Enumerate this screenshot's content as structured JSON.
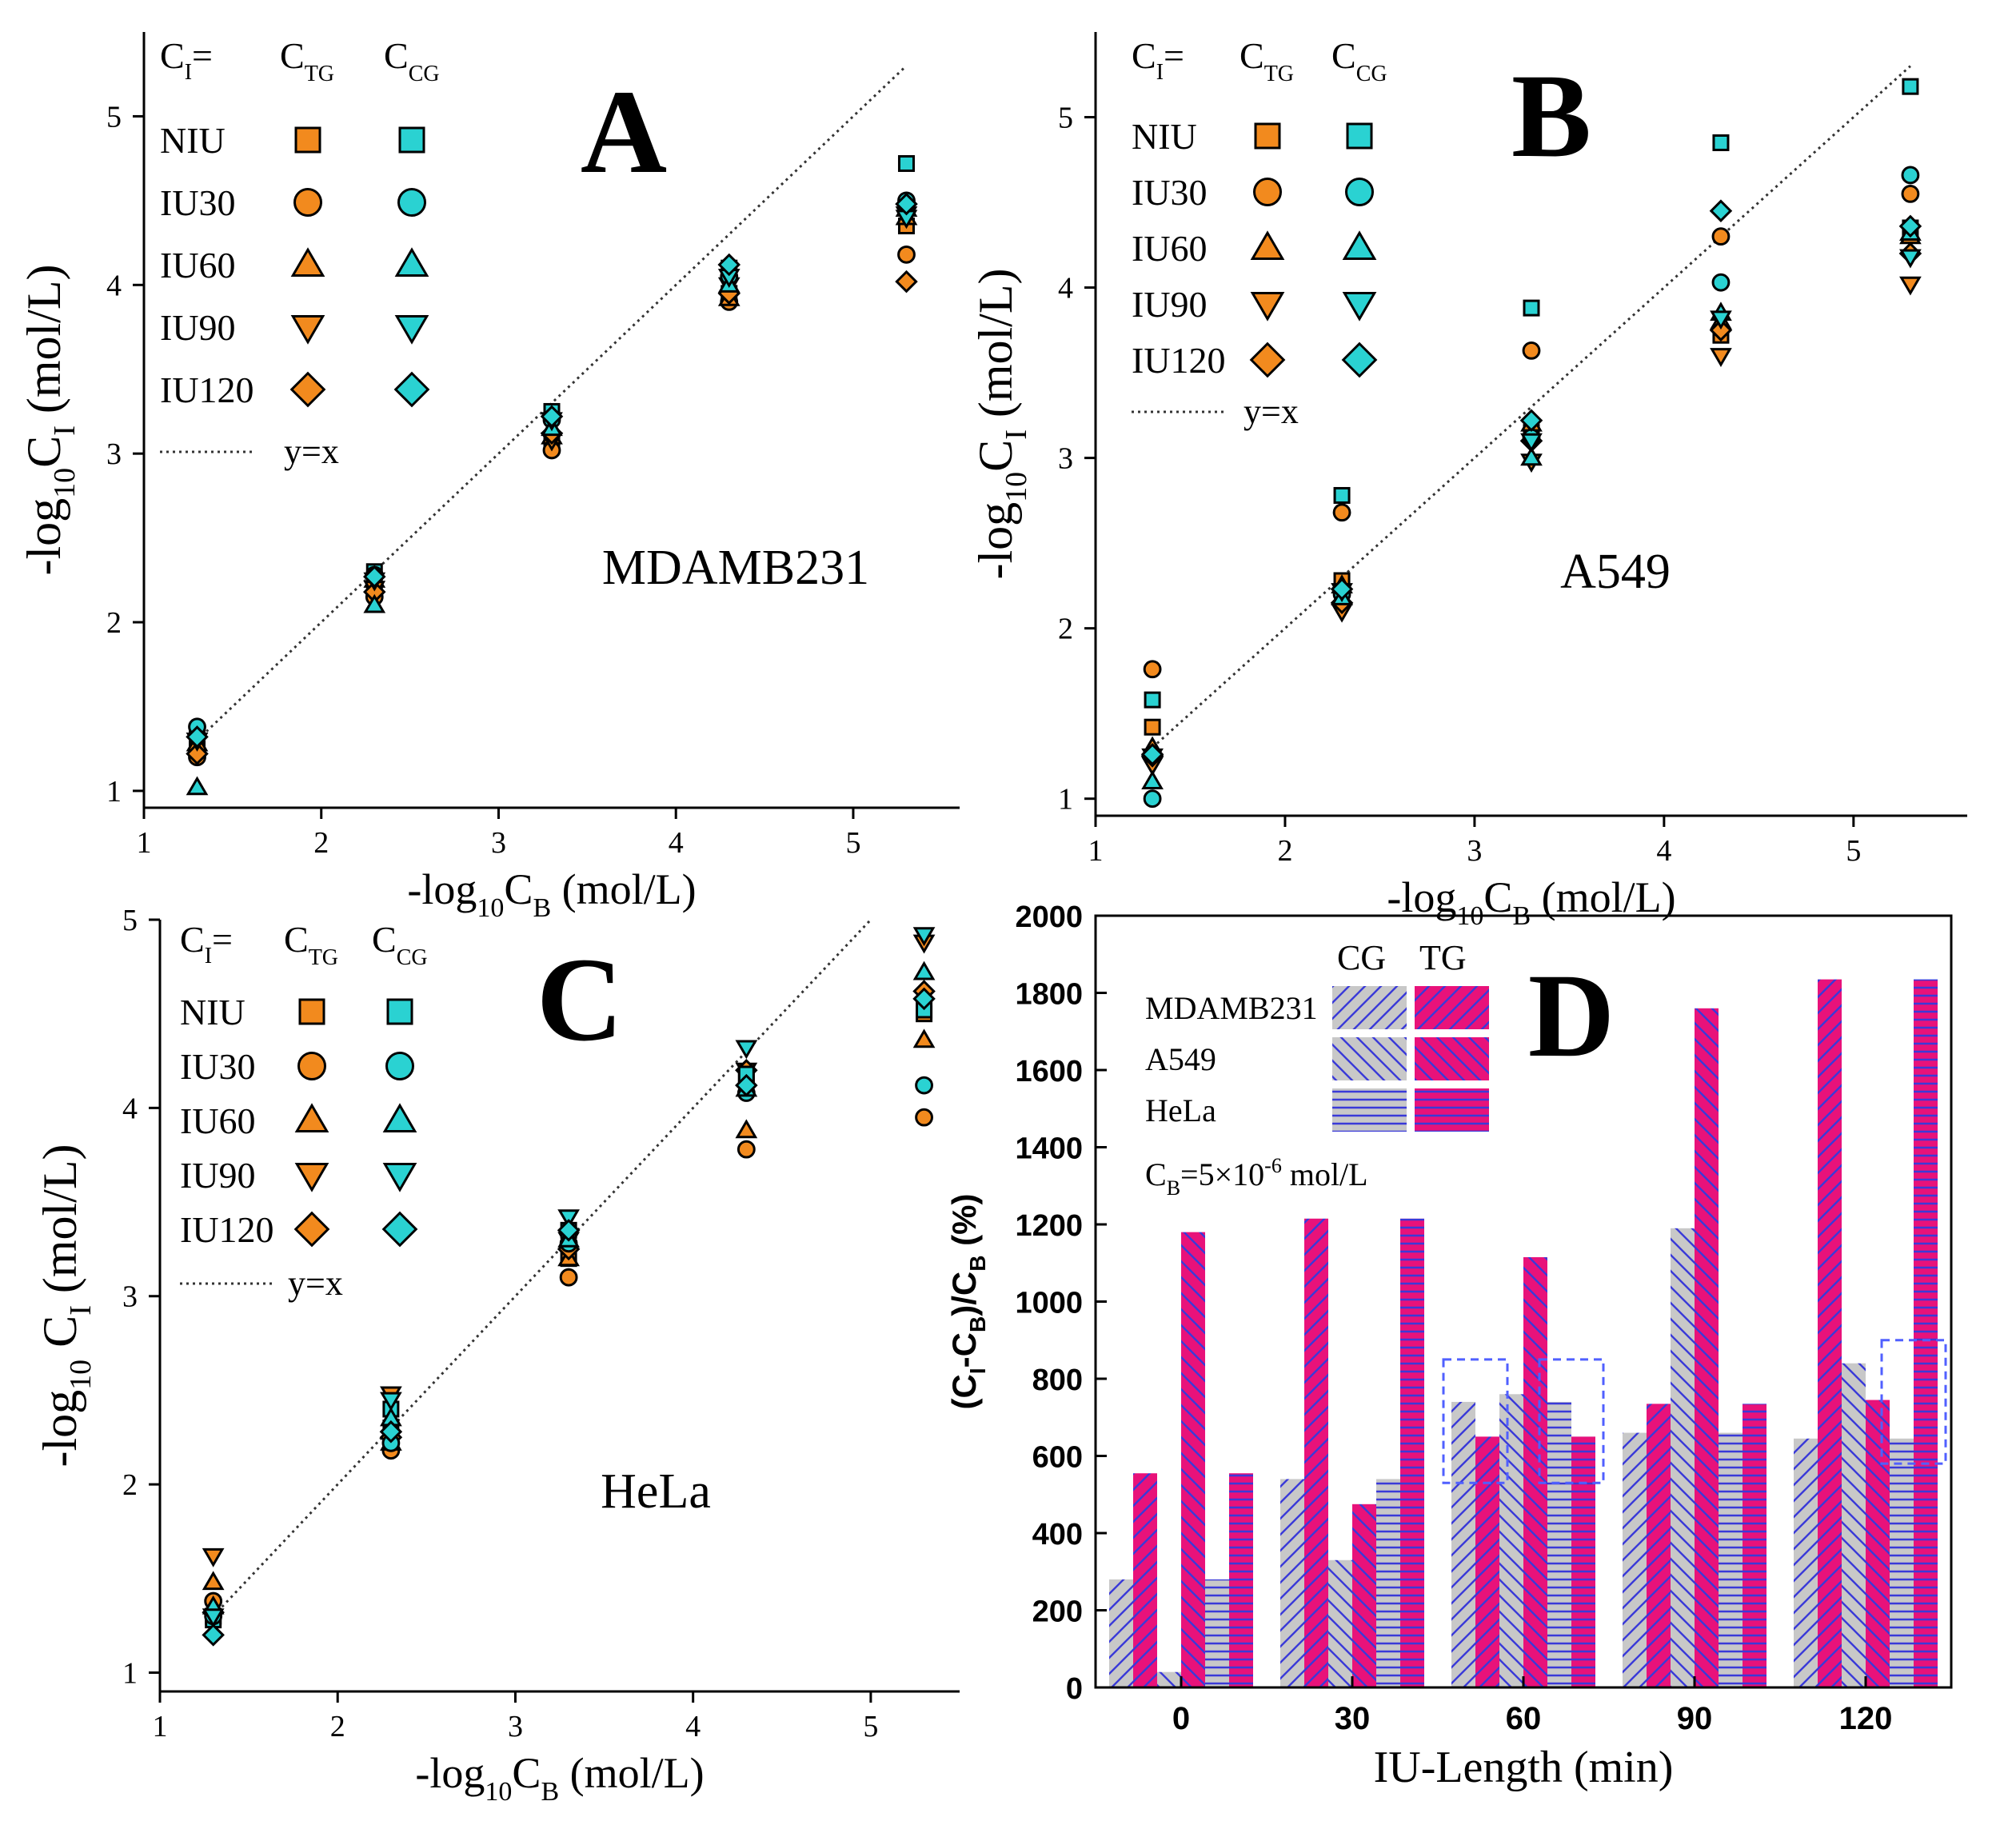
{
  "colors": {
    "tg": "#f28a1e",
    "cg": "#2ad2d2",
    "magenta": "#e8127a",
    "gray": "#c8c8c8",
    "hatch": "#3a3ad8",
    "ref_box": "#5060ff"
  },
  "scatter_legend": {
    "header": {
      "ci": "C",
      "ci_sub": "I",
      "ci_eq": "=",
      "tg": "C",
      "tg_sub": "TG",
      "cg": "C",
      "cg_sub": "CG"
    },
    "rows": [
      {
        "label": "NIU",
        "marker": "square"
      },
      {
        "label": "IU30",
        "marker": "circle"
      },
      {
        "label": "IU60",
        "marker": "triangle-up"
      },
      {
        "label": "IU90",
        "marker": "triangle-down"
      },
      {
        "label": "IU120",
        "marker": "diamond"
      }
    ],
    "line_label": "y=x"
  },
  "bar_legend": {
    "col_cg": "CG",
    "col_tg": "TG",
    "rows": [
      "MDAMB231",
      "A549",
      "HeLa"
    ],
    "note_prefix": "C",
    "note_sub": "B",
    "note_mid": "=5×10",
    "note_sup": "-6",
    "note_suffix": " mol/L"
  },
  "chart_data": [
    {
      "id": "A",
      "type": "scatter",
      "panel_letter": "A",
      "cell_line": "MDAMB231",
      "xlabel": {
        "pre": "-log",
        "sub1": "10",
        "mid": "C",
        "sub2": "B",
        "post": " (mol/L)"
      },
      "ylabel": {
        "pre": "-log",
        "sub1": "10",
        "mid": "C",
        "sub2": "I",
        "post": " (mol/L)"
      },
      "xlim": [
        1,
        5.6
      ],
      "ylim": [
        0.9,
        5.5
      ],
      "xticks": [
        1,
        2,
        3,
        4,
        5
      ],
      "yticks": [
        1,
        2,
        3,
        4,
        5
      ],
      "reference_line": {
        "label": "y=x",
        "from": [
          1.3,
          1.3
        ],
        "to": [
          5.3,
          5.3
        ]
      },
      "x": [
        1.3,
        2.3,
        3.3,
        4.3,
        5.3
      ],
      "series": [
        {
          "name": "NIU TG",
          "group": "TG",
          "marker": "square",
          "values": [
            1.25,
            2.2,
            3.05,
            3.95,
            4.35
          ]
        },
        {
          "name": "IU30 TG",
          "group": "TG",
          "marker": "circle",
          "values": [
            1.2,
            2.15,
            3.02,
            3.9,
            4.18
          ]
        },
        {
          "name": "IU60 TG",
          "group": "TG",
          "marker": "triangle-up",
          "values": [
            1.28,
            2.25,
            3.1,
            3.92,
            4.4
          ]
        },
        {
          "name": "IU90 TG",
          "group": "TG",
          "marker": "triangle-down",
          "values": [
            1.3,
            2.2,
            3.08,
            4.0,
            4.42
          ]
        },
        {
          "name": "IU120 TG",
          "group": "TG",
          "marker": "diamond",
          "values": [
            1.22,
            2.18,
            3.12,
            3.95,
            4.02
          ]
        },
        {
          "name": "NIU CG",
          "group": "CG",
          "marker": "square",
          "values": [
            1.35,
            2.3,
            3.25,
            4.1,
            4.72
          ]
        },
        {
          "name": "IU30 CG",
          "group": "CG",
          "marker": "circle",
          "values": [
            1.38,
            2.28,
            3.2,
            4.05,
            4.5
          ]
        },
        {
          "name": "IU60 CG",
          "group": "CG",
          "marker": "triangle-up",
          "values": [
            1.02,
            2.1,
            3.15,
            4.0,
            4.45
          ]
        },
        {
          "name": "IU90 CG",
          "group": "CG",
          "marker": "triangle-down",
          "values": [
            1.3,
            2.25,
            3.2,
            4.05,
            4.4
          ]
        },
        {
          "name": "IU120 CG",
          "group": "CG",
          "marker": "diamond",
          "values": [
            1.32,
            2.27,
            3.22,
            4.12,
            4.48
          ]
        }
      ]
    },
    {
      "id": "B",
      "type": "scatter",
      "panel_letter": "B",
      "cell_line": "A549",
      "xlabel": {
        "pre": "-log",
        "sub1": "10",
        "mid": "C",
        "sub2": "B",
        "post": " (mol/L)"
      },
      "ylabel": {
        "pre": "-log",
        "sub1": "10",
        "mid": "C",
        "sub2": "I",
        "post": " (mol/L)"
      },
      "xlim": [
        1,
        5.6
      ],
      "ylim": [
        0.9,
        5.5
      ],
      "xticks": [
        1,
        2,
        3,
        4,
        5
      ],
      "yticks": [
        1,
        2,
        3,
        4,
        5
      ],
      "reference_line": {
        "label": "y=x",
        "from": [
          1.3,
          1.3
        ],
        "to": [
          5.3,
          5.3
        ]
      },
      "x": [
        1.3,
        2.3,
        3.3,
        4.3,
        5.3
      ],
      "series": [
        {
          "name": "NIU TG",
          "group": "TG",
          "marker": "square",
          "values": [
            1.42,
            2.28,
            3.15,
            3.72,
            4.35
          ]
        },
        {
          "name": "IU30 TG",
          "group": "TG",
          "marker": "circle",
          "values": [
            1.76,
            2.68,
            3.63,
            4.3,
            4.55
          ]
        },
        {
          "name": "IU60 TG",
          "group": "TG",
          "marker": "triangle-up",
          "values": [
            1.3,
            2.25,
            3.2,
            3.8,
            4.3
          ]
        },
        {
          "name": "IU90 TG",
          "group": "TG",
          "marker": "triangle-down",
          "values": [
            1.2,
            2.1,
            2.98,
            3.6,
            4.02
          ]
        },
        {
          "name": "IU120 TG",
          "group": "TG",
          "marker": "diamond",
          "values": [
            1.25,
            2.15,
            3.1,
            3.75,
            4.2
          ]
        },
        {
          "name": "NIU CG",
          "group": "CG",
          "marker": "square",
          "values": [
            1.58,
            2.78,
            3.88,
            4.85,
            5.18
          ]
        },
        {
          "name": "IU30 CG",
          "group": "CG",
          "marker": "circle",
          "values": [
            1.0,
            2.2,
            3.12,
            4.03,
            4.66
          ]
        },
        {
          "name": "IU60 CG",
          "group": "CG",
          "marker": "triangle-up",
          "values": [
            1.1,
            2.18,
            3.0,
            3.85,
            4.32
          ]
        },
        {
          "name": "IU90 CG",
          "group": "CG",
          "marker": "triangle-down",
          "values": [
            1.25,
            2.22,
            3.1,
            3.82,
            4.18
          ]
        },
        {
          "name": "IU120 CG",
          "group": "CG",
          "marker": "diamond",
          "values": [
            1.26,
            2.23,
            3.22,
            4.45,
            4.36
          ]
        }
      ]
    },
    {
      "id": "C",
      "type": "scatter",
      "panel_letter": "C",
      "cell_line": "HeLa",
      "xlabel": {
        "pre": "-log",
        "sub1": "10",
        "mid": "C",
        "sub2": "B",
        "post": " (mol/L)"
      },
      "ylabel": {
        "pre": "-log",
        "sub1": "10",
        "mid": " C",
        "sub2": "I",
        "post": " (mol/L)"
      },
      "xlim": [
        1,
        5.5
      ],
      "ylim": [
        0.9,
        5.0
      ],
      "xticks": [
        1,
        2,
        3,
        4,
        5
      ],
      "yticks": [
        1,
        2,
        3,
        4,
        5
      ],
      "reference_line": {
        "label": "y=x",
        "from": [
          1.3,
          1.3
        ],
        "to": [
          5.0,
          5.0
        ]
      },
      "x": [
        1.3,
        2.3,
        3.3,
        4.3,
        5.3
      ],
      "series": [
        {
          "name": "NIU TG",
          "group": "TG",
          "marker": "square",
          "values": [
            1.3,
            2.3,
            3.2,
            4.15,
            4.5
          ]
        },
        {
          "name": "IU30 TG",
          "group": "TG",
          "marker": "circle",
          "values": [
            1.38,
            2.18,
            3.1,
            3.78,
            3.95
          ]
        },
        {
          "name": "IU60 TG",
          "group": "TG",
          "marker": "triangle-up",
          "values": [
            1.48,
            2.22,
            3.2,
            3.88,
            4.36
          ]
        },
        {
          "name": "IU90 TG",
          "group": "TG",
          "marker": "triangle-down",
          "values": [
            1.62,
            2.48,
            3.3,
            4.2,
            4.88
          ]
        },
        {
          "name": "IU120 TG",
          "group": "TG",
          "marker": "diamond",
          "values": [
            1.32,
            2.25,
            3.25,
            4.2,
            4.62
          ]
        },
        {
          "name": "NIU CG",
          "group": "CG",
          "marker": "square",
          "values": [
            1.28,
            2.4,
            3.35,
            4.18,
            4.52
          ]
        },
        {
          "name": "IU30 CG",
          "group": "CG",
          "marker": "circle",
          "values": [
            1.3,
            2.22,
            3.28,
            4.08,
            4.12
          ]
        },
        {
          "name": "IU60 CG",
          "group": "CG",
          "marker": "triangle-up",
          "values": [
            1.35,
            2.35,
            3.3,
            4.1,
            4.72
          ]
        },
        {
          "name": "IU90 CG",
          "group": "CG",
          "marker": "triangle-down",
          "values": [
            1.3,
            2.45,
            3.42,
            4.32,
            4.92
          ]
        },
        {
          "name": "IU120 CG",
          "group": "CG",
          "marker": "diamond",
          "values": [
            1.2,
            2.28,
            3.35,
            4.12,
            4.58
          ]
        }
      ]
    },
    {
      "id": "D",
      "type": "bar",
      "panel_letter": "D",
      "ylabel": {
        "open": "(C",
        "sub1": "I",
        "mid": "-C",
        "sub2": "B",
        "close": ")/C",
        "sub3": "B",
        "post": " (%)"
      },
      "xlabel": "IU-Length (min)",
      "ylim": [
        0,
        2000
      ],
      "yticks": [
        0,
        200,
        400,
        600,
        800,
        1000,
        1200,
        1400,
        1600,
        1800,
        2000
      ],
      "categories": [
        "0",
        "30",
        "60",
        "90",
        "120"
      ],
      "bar_order": [
        "MDAMB231 CG",
        "MDAMB231 TG",
        "A549 CG",
        "A549 TG",
        "HeLa CG",
        "HeLa TG"
      ],
      "series": [
        {
          "name": "MDAMB231 CG",
          "cell": "MDAMB231",
          "group": "CG",
          "values": [
            280,
            540,
            740,
            660,
            645
          ]
        },
        {
          "name": "MDAMB231 TG",
          "cell": "MDAMB231",
          "group": "TG",
          "values": [
            555,
            1215,
            650,
            735,
            1835
          ]
        },
        {
          "name": "A549 CG",
          "cell": "A549",
          "group": "CG",
          "values": [
            40,
            330,
            760,
            1190,
            840
          ]
        },
        {
          "name": "A549 TG",
          "cell": "A549",
          "group": "TG",
          "values": [
            1180,
            475,
            1115,
            1760,
            745
          ]
        },
        {
          "name": "HeLa CG",
          "cell": "HeLa",
          "group": "CG",
          "values": [
            280,
            540,
            740,
            660,
            645
          ]
        },
        {
          "name": "HeLa TG",
          "cell": "HeLa",
          "group": "TG",
          "values": [
            555,
            1215,
            650,
            735,
            1835
          ]
        }
      ],
      "highlight_boxes": [
        {
          "category": "60",
          "bar_span": [
            1,
            2
          ],
          "y_range": [
            530,
            850
          ]
        },
        {
          "category": "60",
          "bar_span": [
            5,
            6
          ],
          "y_range": [
            530,
            850
          ]
        },
        {
          "category": "120",
          "bar_span": [
            5,
            6
          ],
          "y_range": [
            580,
            900
          ]
        }
      ]
    }
  ]
}
